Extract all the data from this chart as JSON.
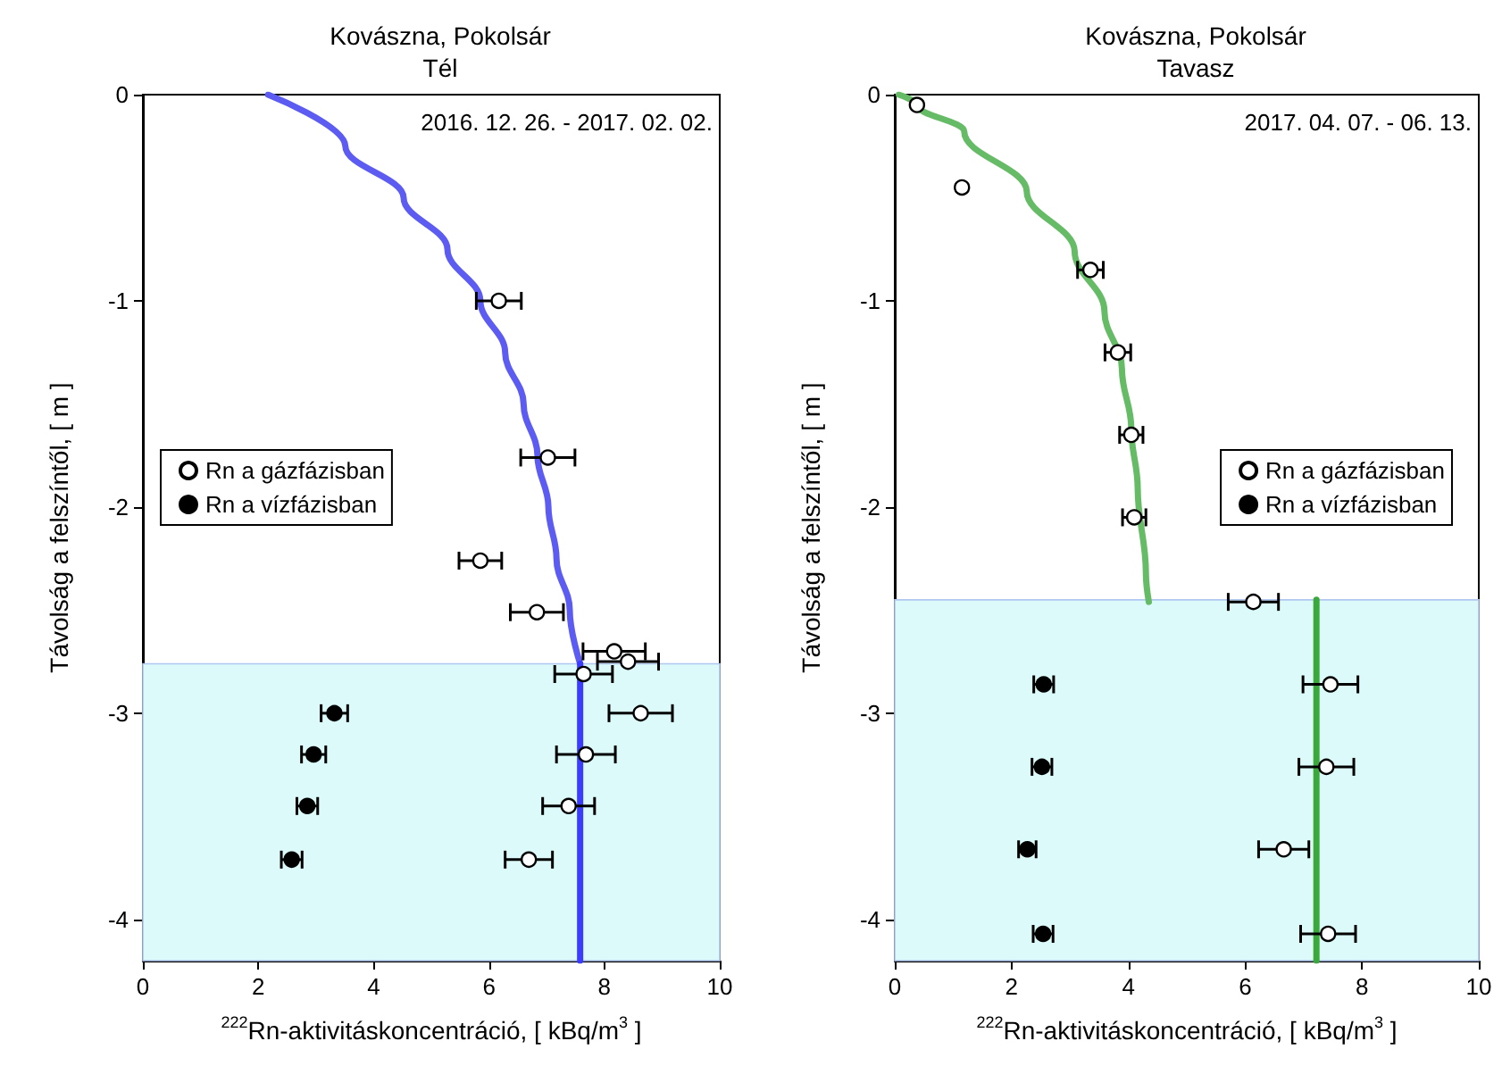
{
  "chart_data": [
    {
      "type": "scatter",
      "title": "Kovászna, Pokolsár",
      "subtitle": "Tél",
      "xlabel": "$^{222}$Rn-aktivitáskoncentráció, [ kBq/m$^{3}$ ]",
      "ylabel": "Távolság a felszíntől, [ m ]",
      "annotations": [
        "2016. 12. 26. - 2017. 02. 02."
      ],
      "xlim": [
        0,
        10
      ],
      "xticks": [
        0,
        2,
        4,
        6,
        8,
        10
      ],
      "ylim": [
        -4.2,
        0
      ],
      "yticks": [
        -4,
        -3,
        -2,
        -1,
        0
      ],
      "legend": "left",
      "bands": [
        {
          "axis": "y",
          "from": -4.2,
          "to": -2.76,
          "color": "#dcfafa"
        }
      ],
      "series": [
        {
          "type": "line",
          "marker": "none",
          "color": "#5c5cf2",
          "x": [
            2.17,
            3.51,
            4.52,
            5.28,
            5.85,
            6.28,
            6.6,
            6.84,
            7.03,
            7.17,
            7.4,
            7.58
          ],
          "values": [
            0,
            -0.25,
            -0.5,
            -0.75,
            -1,
            -1.25,
            -1.5,
            -1.75,
            -2,
            -2.25,
            -2.5,
            -2.76
          ]
        },
        {
          "type": "line",
          "marker": "none",
          "color": "#3c3cff",
          "x": [
            7.58,
            7.58
          ],
          "values": [
            -2.76,
            -4.2
          ]
        },
        {
          "name": "Rn a gázfázisban",
          "marker": "circle",
          "color": "#ffffff",
          "x": [
            6.17,
            7.02,
            5.85,
            6.83,
            8.17,
            8.41,
            7.64,
            8.63,
            7.68,
            7.38,
            6.69
          ],
          "values": [
            -1,
            -1.76,
            -2.26,
            -2.51,
            -2.7,
            -2.75,
            -2.81,
            -3,
            -3.2,
            -3.45,
            -3.71
          ],
          "xerrors": [
            0.39,
            0.47,
            0.37,
            0.46,
            0.54,
            0.53,
            0.5,
            0.55,
            0.51,
            0.45,
            0.41
          ]
        },
        {
          "name": "Rn a vízfázisban",
          "marker": "circle",
          "color": "#000000",
          "x": [
            3.32,
            2.96,
            2.85,
            2.58
          ],
          "values": [
            -3,
            -3.2,
            -3.45,
            -3.71
          ],
          "xerrors": [
            0.23,
            0.21,
            0.18,
            0.18
          ]
        }
      ]
    },
    {
      "type": "scatter",
      "title": "Kovászna, Pokolsár",
      "subtitle": "Tavasz",
      "xlabel": "$^{222}$Rn-aktivitáskoncentráció, [ kBq/m$^{3}$ ]",
      "ylabel": "Távolság a felszíntől, [ m ]",
      "annotations": [
        "2017. 04. 07. - 06. 13."
      ],
      "xlim": [
        0,
        10
      ],
      "xticks": [
        0,
        2,
        4,
        6,
        8,
        10
      ],
      "ylim": [
        -4.2,
        0
      ],
      "yticks": [
        -4,
        -3,
        -2,
        -1,
        0
      ],
      "legend": "right",
      "bands": [
        {
          "axis": "y",
          "from": -4.2,
          "to": -2.45,
          "color": "#dcfafa"
        }
      ],
      "series": [
        {
          "type": "line",
          "marker": "none",
          "color": "#66bb66",
          "x": [
            0.07,
            0.38,
            1.19,
            2.26,
            3.08,
            3.59,
            3.89,
            4.05,
            4.16,
            4.3,
            4.35
          ],
          "values": [
            0,
            -0.05,
            -0.18,
            -0.47,
            -0.76,
            -1.05,
            -1.33,
            -1.62,
            -1.91,
            -2.32,
            -2.46
          ]
        },
        {
          "type": "line",
          "marker": "none",
          "color": "#3aa83a",
          "x": [
            7.22,
            7.22
          ],
          "values": [
            -2.45,
            -4.2
          ]
        },
        {
          "name": "Rn a gázfázisban",
          "marker": "circle",
          "color": "#ffffff",
          "x": [
            0.38,
            1.15,
            3.35,
            3.82,
            4.05,
            4.1,
            6.14,
            7.46,
            7.39,
            6.66,
            7.42
          ],
          "values": [
            -0.05,
            -0.45,
            -0.85,
            -1.25,
            -1.65,
            -2.05,
            -2.46,
            -2.86,
            -3.26,
            -3.66,
            -4.07
          ],
          "xerrors": [
            null,
            null,
            0.22,
            0.22,
            0.2,
            0.2,
            0.43,
            0.47,
            0.47,
            0.43,
            0.47
          ]
        },
        {
          "name": "Rn a vízfázisban",
          "marker": "circle",
          "color": "#000000",
          "x": [
            2.55,
            2.52,
            2.27,
            2.54
          ],
          "values": [
            -2.86,
            -3.26,
            -3.66,
            -4.07
          ],
          "xerrors": [
            0.17,
            0.17,
            0.15,
            0.17
          ]
        }
      ]
    }
  ]
}
